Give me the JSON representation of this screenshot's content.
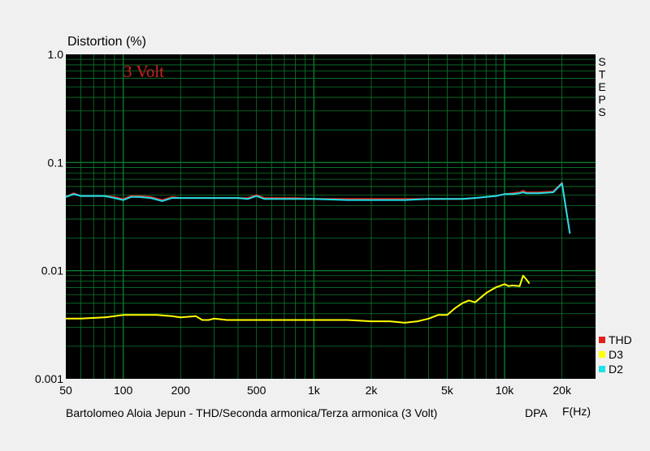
{
  "chart_data": {
    "type": "line",
    "title": "Distortion (%)",
    "annotation": "3 Volt",
    "caption": "Bartolomeo Aloia Jepun - THD/Seconda armonica/Terza armonica (3 Volt)",
    "watermark": "DPA",
    "xlabel": "F(Hz)",
    "side_label": [
      "S",
      "T",
      "E",
      "P",
      "S"
    ],
    "x_scale": "log",
    "y_scale": "log",
    "xlim": [
      50,
      30000
    ],
    "ylim": [
      0.001,
      1.0
    ],
    "x_tick_labels": [
      {
        "v": 50,
        "label": "50"
      },
      {
        "v": 100,
        "label": "100"
      },
      {
        "v": 200,
        "label": "200"
      },
      {
        "v": 500,
        "label": "500"
      },
      {
        "v": 1000,
        "label": "1k"
      },
      {
        "v": 2000,
        "label": "2k"
      },
      {
        "v": 5000,
        "label": "5k"
      },
      {
        "v": 10000,
        "label": "10k"
      },
      {
        "v": 20000,
        "label": "20k"
      }
    ],
    "y_tick_labels": [
      {
        "v": 1.0,
        "label": "1.0"
      },
      {
        "v": 0.1,
        "label": "0.1"
      },
      {
        "v": 0.01,
        "label": "0.01"
      },
      {
        "v": 0.001,
        "label": "0.001"
      }
    ],
    "grid": true,
    "legend_position": "bottom-right",
    "colors": {
      "plot_bg": "#000000",
      "grid": "#0b7a2e",
      "thd": "#e0201c",
      "d3": "#ffff00",
      "d2": "#20e0e8",
      "annotation": "#cc2222"
    },
    "series": [
      {
        "name": "THD",
        "color": "#e0201c",
        "x": [
          50,
          55,
          60,
          70,
          80,
          90,
          100,
          110,
          120,
          140,
          160,
          180,
          200,
          250,
          300,
          400,
          450,
          500,
          550,
          600,
          700,
          800,
          1000,
          1500,
          2000,
          3000,
          4000,
          5000,
          6000,
          7000,
          8000,
          9000,
          10000,
          11000,
          12000,
          12500,
          13000,
          15000,
          18000,
          20000,
          22000
        ],
        "y": [
          0.048,
          0.052,
          0.049,
          0.049,
          0.049,
          0.048,
          0.046,
          0.049,
          0.049,
          0.048,
          0.045,
          0.048,
          0.047,
          0.047,
          0.047,
          0.047,
          0.047,
          0.05,
          0.047,
          0.047,
          0.047,
          0.047,
          0.046,
          0.046,
          0.046,
          0.046,
          0.046,
          0.046,
          0.046,
          0.047,
          0.048,
          0.049,
          0.051,
          0.052,
          0.053,
          0.055,
          0.053,
          0.053,
          0.054,
          0.065,
          0.022
        ]
      },
      {
        "name": "D3",
        "color": "#ffff00",
        "x": [
          50,
          60,
          80,
          90,
          100,
          120,
          150,
          180,
          200,
          240,
          260,
          280,
          300,
          350,
          400,
          500,
          600,
          800,
          1000,
          1500,
          2000,
          2500,
          3000,
          3500,
          4000,
          4500,
          5000,
          5500,
          6000,
          6500,
          7000,
          8000,
          9000,
          10000,
          10500,
          11000,
          12000,
          12500,
          13000,
          13500
        ],
        "y": [
          0.0036,
          0.0036,
          0.0037,
          0.0038,
          0.0039,
          0.0039,
          0.0039,
          0.0038,
          0.0037,
          0.0038,
          0.0035,
          0.0035,
          0.0036,
          0.0035,
          0.0035,
          0.0035,
          0.0035,
          0.0035,
          0.0035,
          0.0035,
          0.0034,
          0.0034,
          0.0033,
          0.0034,
          0.0036,
          0.0039,
          0.0039,
          0.0045,
          0.005,
          0.0053,
          0.0051,
          0.0062,
          0.007,
          0.0075,
          0.0072,
          0.0073,
          0.0072,
          0.009,
          0.0083,
          0.0076
        ]
      },
      {
        "name": "D2",
        "color": "#20e0e8",
        "x": [
          50,
          55,
          60,
          70,
          80,
          90,
          100,
          110,
          120,
          140,
          160,
          180,
          200,
          250,
          300,
          400,
          450,
          500,
          550,
          600,
          700,
          800,
          1000,
          1500,
          2000,
          3000,
          4000,
          5000,
          6000,
          7000,
          8000,
          9000,
          10000,
          11000,
          12000,
          12500,
          13000,
          15000,
          18000,
          20000,
          22000
        ],
        "y": [
          0.048,
          0.051,
          0.049,
          0.049,
          0.049,
          0.047,
          0.045,
          0.048,
          0.048,
          0.047,
          0.044,
          0.047,
          0.047,
          0.047,
          0.047,
          0.047,
          0.046,
          0.049,
          0.046,
          0.046,
          0.046,
          0.046,
          0.046,
          0.045,
          0.045,
          0.045,
          0.046,
          0.046,
          0.046,
          0.047,
          0.048,
          0.049,
          0.051,
          0.051,
          0.052,
          0.053,
          0.052,
          0.052,
          0.053,
          0.064,
          0.022
        ]
      }
    ]
  }
}
